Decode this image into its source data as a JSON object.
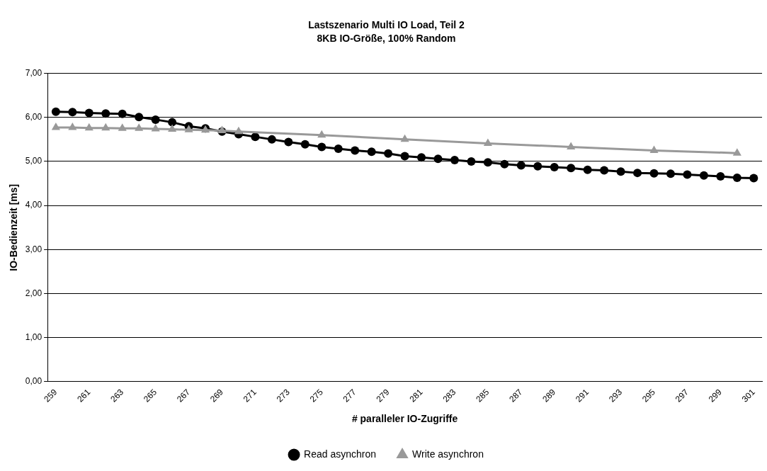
{
  "chart_data": {
    "type": "line",
    "title": "Lastszenario Multi IO Load, Teil 2",
    "subtitle": "8KB IO-Größe, 100% Random",
    "xlabel": "# paralleler IO-Zugriffe",
    "ylabel": "IO-Bedienzeit [ms]",
    "categories": [
      "259",
      null,
      "261",
      null,
      "263",
      null,
      "265",
      null,
      "267",
      null,
      "269",
      null,
      "271",
      null,
      "273",
      null,
      "275",
      null,
      "277",
      null,
      "279",
      null,
      "281",
      null,
      "283",
      null,
      "285",
      null,
      "287",
      null,
      "289",
      null,
      "291",
      null,
      "293",
      null,
      "295",
      null,
      "297",
      null,
      "299",
      null,
      "301"
    ],
    "series": [
      {
        "name": "Read asynchron",
        "color": "#000000",
        "marker": "circle",
        "values": [
          6.13,
          6.12,
          6.1,
          6.09,
          6.08,
          6.01,
          5.95,
          5.89,
          5.8,
          5.75,
          5.68,
          5.62,
          5.56,
          5.5,
          5.44,
          5.39,
          5.33,
          5.29,
          5.25,
          5.22,
          5.18,
          5.12,
          5.09,
          5.06,
          5.03,
          5.0,
          4.98,
          4.94,
          4.91,
          4.89,
          4.87,
          4.85,
          4.81,
          4.8,
          4.77,
          4.74,
          4.73,
          4.72,
          4.7,
          4.68,
          4.66,
          4.63,
          4.62
        ]
      },
      {
        "name": "Write asynchron",
        "color": "#999999",
        "marker": "triangle",
        "values": [
          5.77,
          5.77,
          5.76,
          5.76,
          5.75,
          5.75,
          5.74,
          5.73,
          5.72,
          5.71,
          5.7,
          5.68,
          null,
          null,
          null,
          null,
          5.6,
          null,
          null,
          null,
          null,
          5.5,
          null,
          null,
          null,
          null,
          5.41,
          null,
          null,
          null,
          null,
          5.33,
          null,
          null,
          null,
          null,
          5.25,
          null,
          null,
          null,
          null,
          5.19,
          null
        ]
      }
    ],
    "ylim": [
      0,
      7
    ],
    "yticks": [
      {
        "value": 0,
        "label": "0,00"
      },
      {
        "value": 1,
        "label": "1,00"
      },
      {
        "value": 2,
        "label": "2,00"
      },
      {
        "value": 3,
        "label": "3,00"
      },
      {
        "value": 4,
        "label": "4,00"
      },
      {
        "value": 5,
        "label": "5,00"
      },
      {
        "value": 6,
        "label": "6,00"
      },
      {
        "value": 7,
        "label": "7,00"
      }
    ],
    "grid": "y",
    "legend": "bottom",
    "line_style": "solid"
  }
}
